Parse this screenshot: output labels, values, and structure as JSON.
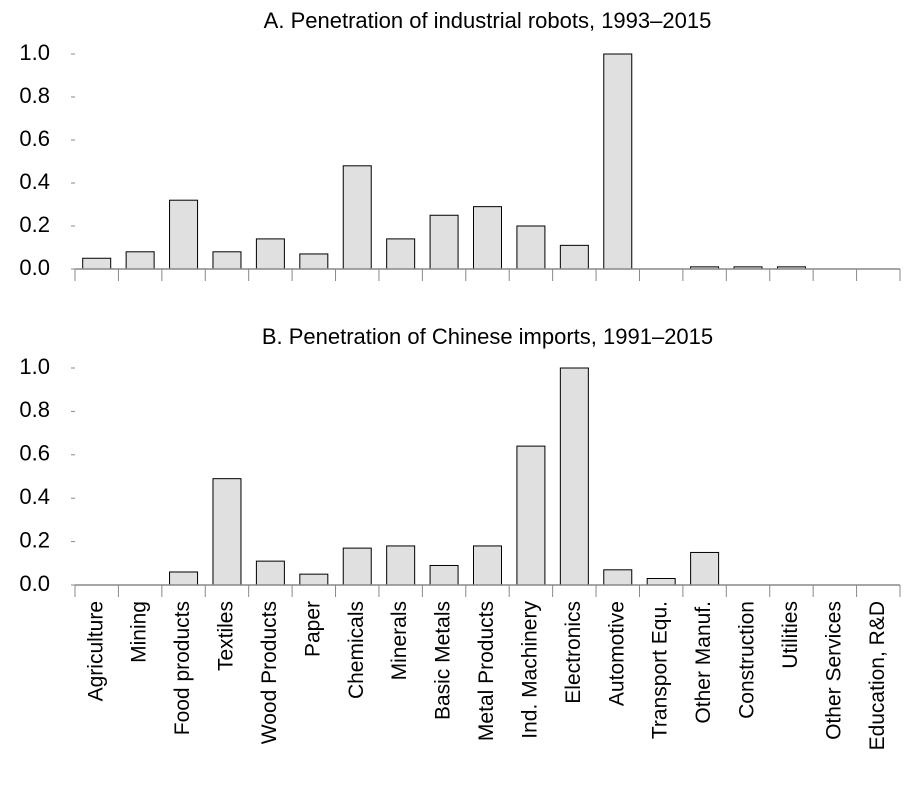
{
  "chart_data": [
    {
      "type": "bar",
      "title": "A. Penetration of industrial robots, 1993–2015",
      "values": [
        0.05,
        0.08,
        0.32,
        0.08,
        0.14,
        0.07,
        0.48,
        0.14,
        0.25,
        0.29,
        0.2,
        0.11,
        1.0,
        0,
        0.01,
        0.01,
        0.01,
        0,
        0
      ],
      "color": "#e0e0e0",
      "ylim": [
        0,
        1
      ],
      "yticks": [
        {
          "value": 0,
          "label": "0.0"
        },
        0.2,
        0.4,
        0.6,
        0.8,
        {
          "value": 1,
          "label": "1.0"
        }
      ]
    },
    {
      "type": "bar",
      "title": "B. Penetration of Chinese imports, 1991–2015",
      "categories": [
        "Agriculture",
        "Mining",
        "Food products",
        "Textiles",
        "Wood Products",
        "Paper",
        "Chemicals",
        "Minerals",
        "Basic Metals",
        "Metal Products",
        "Ind. Machinery",
        "Electronics",
        "Automotive",
        "Transport Equ.",
        "Other Manuf.",
        "Construction",
        "Utilities",
        "Other Services",
        "Education, R&D"
      ],
      "values": [
        0,
        0,
        0.06,
        0.49,
        0.11,
        0.05,
        0.17,
        0.18,
        0.09,
        0.18,
        0.64,
        1.0,
        0.07,
        0.03,
        0.15,
        0,
        0,
        0,
        0
      ],
      "color": "#e0e0e0",
      "ylim": [
        0,
        1
      ],
      "yticks": [
        {
          "value": 0,
          "label": "0.0"
        },
        0.2,
        0.4,
        0.6,
        0.8,
        {
          "value": 1,
          "label": "1.0"
        }
      ]
    }
  ]
}
